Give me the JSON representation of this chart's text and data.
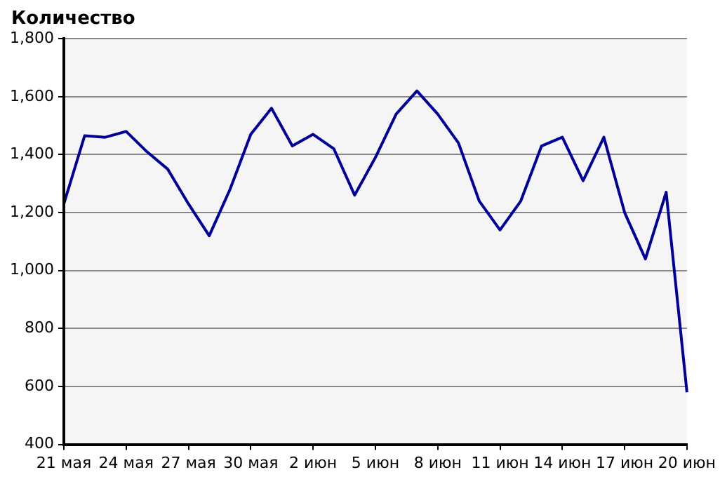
{
  "chart_data": {
    "type": "line",
    "title": "Количество",
    "categories": [
      "21 мая",
      null,
      null,
      "24 мая",
      null,
      null,
      "27 мая",
      null,
      null,
      "30 мая",
      null,
      null,
      "2 июн",
      null,
      null,
      "5 июн",
      null,
      null,
      "8 июн",
      null,
      null,
      "11 июн",
      null,
      null,
      "14 июн",
      null,
      null,
      "17 июн",
      null,
      null,
      "20 июн"
    ],
    "series": [
      {
        "color": "#000099",
        "values": [
          1230,
          1465,
          1460,
          1480,
          1410,
          1350,
          1230,
          1120,
          1280,
          1470,
          1560,
          1430,
          1470,
          1420,
          1260,
          1390,
          1540,
          1620,
          1540,
          1440,
          1240,
          1140,
          1240,
          1430,
          1460,
          1310,
          1460,
          1200,
          1040,
          1270,
          580
        ]
      }
    ],
    "ylim": [
      400,
      1800
    ],
    "yticks": [
      {
        "value": 400,
        "label": "400"
      },
      {
        "value": 600,
        "label": "600"
      },
      {
        "value": 800,
        "label": "800"
      },
      {
        "value": 1000,
        "label": "1,000"
      },
      {
        "value": 1200,
        "label": "1,200"
      },
      {
        "value": 1400,
        "label": "1,400"
      },
      {
        "value": 1600,
        "label": "1,600"
      },
      {
        "value": 1800,
        "label": "1,800"
      }
    ],
    "grid": true,
    "marker": "none",
    "line_style": "solid"
  }
}
